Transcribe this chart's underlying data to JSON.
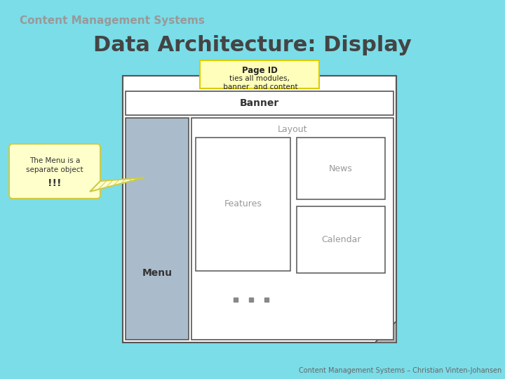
{
  "bg_color": "#7adde8",
  "title_main": "Content Management Systems",
  "title_main_color": "#999999",
  "title_main_fontsize": 11,
  "title_sub": "Data Architecture: Display",
  "title_sub_color": "#444444",
  "title_sub_fontsize": 22,
  "page_id_box_color": "#ffffbb",
  "page_id_box_edge": "#ddcc00",
  "banner_label": "Banner",
  "menu_label": "Menu",
  "menu_box_color": "#aabbcc",
  "layout_label": "Layout",
  "features_label": "Features",
  "news_label": "News",
  "calendar_label": "Calendar",
  "callout_box_color": "#ffffcc",
  "callout_edge_color": "#cccc44",
  "footer_text": "Content Management Systems – Christian Vinten-Johansen",
  "footer_color": "#666666",
  "footer_fontsize": 7,
  "dots_color": "#888888",
  "box_edge_color": "#555555",
  "page_box_color": "#ffffff"
}
